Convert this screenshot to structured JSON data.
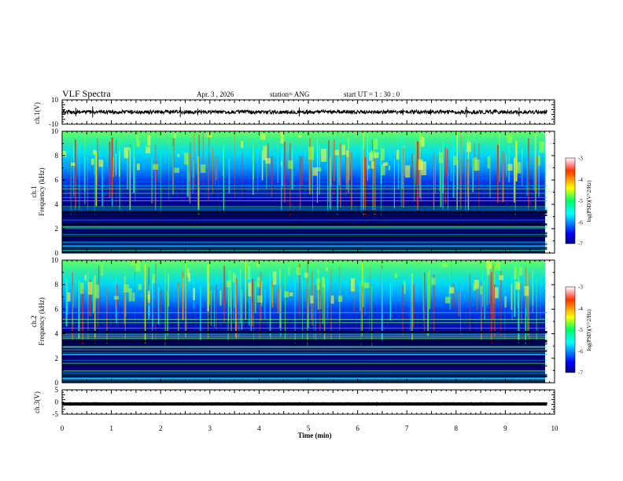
{
  "header": {
    "title": "VLF Spectra",
    "date": "Apr. 3 , 2026",
    "station": "station= ANG",
    "start": "start UT = 1 : 30 : 0"
  },
  "chart_data": [
    {
      "type": "line",
      "panel": "ch.1 waveform",
      "ylabel": "ch.1(V)",
      "ylim": [
        -10,
        10
      ],
      "yticks": [
        "10",
        "-10"
      ],
      "baseline": 0
    },
    {
      "type": "heatmap",
      "panel": "ch.1 spectrogram",
      "ylabel_line1": "ch.1",
      "ylabel_line2": "Frequency (kHz)",
      "ylim": [
        0,
        10
      ],
      "yticks": [
        "0",
        "2",
        "4",
        "6",
        "8",
        "10"
      ],
      "colorbar": {
        "label": "log(PSD)(V^2/Hz)",
        "range": [
          -7,
          -3
        ],
        "ticks": [
          "-3",
          "-4",
          "-5",
          "-6",
          "-7"
        ]
      }
    },
    {
      "type": "heatmap",
      "panel": "ch.2 spectrogram",
      "ylabel_line1": "ch.2",
      "ylabel_line2": "Frequency (kHz)",
      "ylim": [
        0,
        10
      ],
      "yticks": [
        "0",
        "2",
        "4",
        "6",
        "8",
        "10"
      ],
      "colorbar": {
        "label": "log(PSD)(V^2/Hz)",
        "range": [
          -7,
          -3
        ],
        "ticks": [
          "-3",
          "-4",
          "-5",
          "-6",
          "-7"
        ]
      }
    },
    {
      "type": "line",
      "panel": "ch.3 waveform",
      "ylabel": "ch.3(V)",
      "ylim": [
        -5,
        5
      ],
      "yticks": [
        "5",
        "0",
        "-5"
      ],
      "baseline": -0.8
    }
  ],
  "xaxis": {
    "label": "Time (min)",
    "range": [
      0,
      10
    ],
    "data_end": 9.85,
    "ticks": [
      "0",
      "1",
      "2",
      "3",
      "4",
      "5",
      "6",
      "7",
      "8",
      "9",
      "10"
    ]
  }
}
